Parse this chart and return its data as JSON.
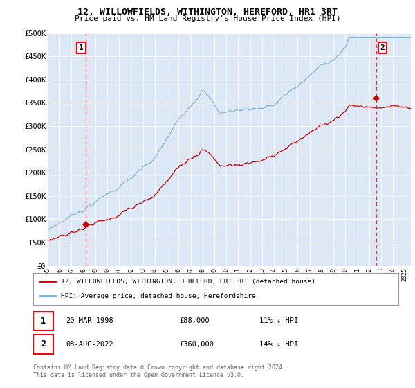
{
  "title": "12, WILLOWFIELDS, WITHINGTON, HEREFORD, HR1 3RT",
  "subtitle": "Price paid vs. HM Land Registry's House Price Index (HPI)",
  "sale1_date_label": "20-MAR-1998",
  "sale1_price": 88000,
  "sale1_price_label": "£88,000",
  "sale1_hpi_label": "11% ↓ HPI",
  "sale1_year": 1998.22,
  "sale2_date_label": "08-AUG-2022",
  "sale2_price": 360000,
  "sale2_price_label": "£360,000",
  "sale2_hpi_label": "14% ↓ HPI",
  "sale2_year": 2022.6,
  "legend1": "12, WILLOWFIELDS, WITHINGTON, HEREFORD, HR1 3RT (detached house)",
  "legend2": "HPI: Average price, detached house, Herefordshire",
  "footer": "Contains HM Land Registry data © Crown copyright and database right 2024.\nThis data is licensed under the Open Government Licence v3.0.",
  "line_red": "#cc0000",
  "line_blue": "#7aafd4",
  "bg_color": "#dce8f5",
  "ylim": [
    0,
    500000
  ],
  "xlim_start": 1995.0,
  "xlim_end": 2025.5
}
